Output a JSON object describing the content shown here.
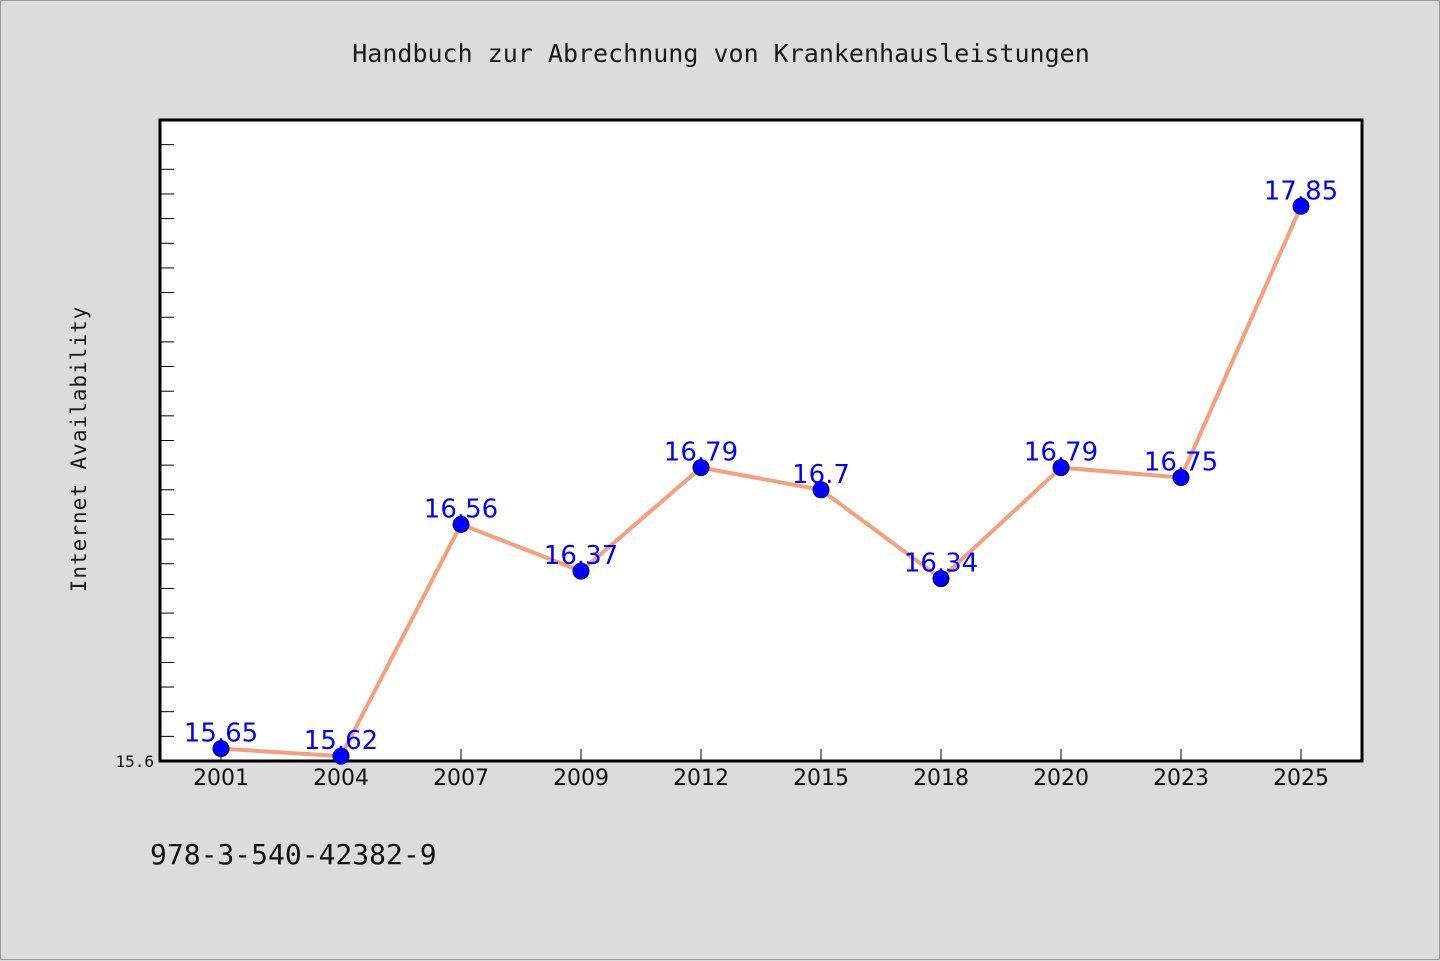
{
  "chart_data": {
    "type": "line",
    "title": "Handbuch zur Abrechnung von Krankenhausleistungen",
    "xlabel": "",
    "ylabel": "Internet Availability",
    "x": [
      "2001",
      "2004",
      "2007",
      "2009",
      "2012",
      "2015",
      "2018",
      "2020",
      "2023",
      "2025"
    ],
    "series": [
      {
        "values": [
          15.65,
          15.62,
          16.56,
          16.37,
          16.79,
          16.7,
          16.34,
          16.79,
          16.75,
          17.85
        ],
        "labels": [
          "15.65",
          "15.62",
          "16.56",
          "16.37",
          "16.79",
          "16.7",
          "16.34",
          "16.79",
          "16.75",
          "17.85"
        ]
      }
    ],
    "ylim": [
      15.6,
      18.2
    ],
    "y_tick_labels": [
      "15.6"
    ],
    "y_minor_ticks": 25,
    "line_color": "#f4a07c",
    "marker_color": "#0000ff",
    "label_color": "#0000ff",
    "grid": false
  },
  "footer": {
    "isbn": "978-3-540-42382-9"
  },
  "colors": {
    "background": "#dcdcdc",
    "plot_background": "#ffffff",
    "frame": "#000000"
  }
}
